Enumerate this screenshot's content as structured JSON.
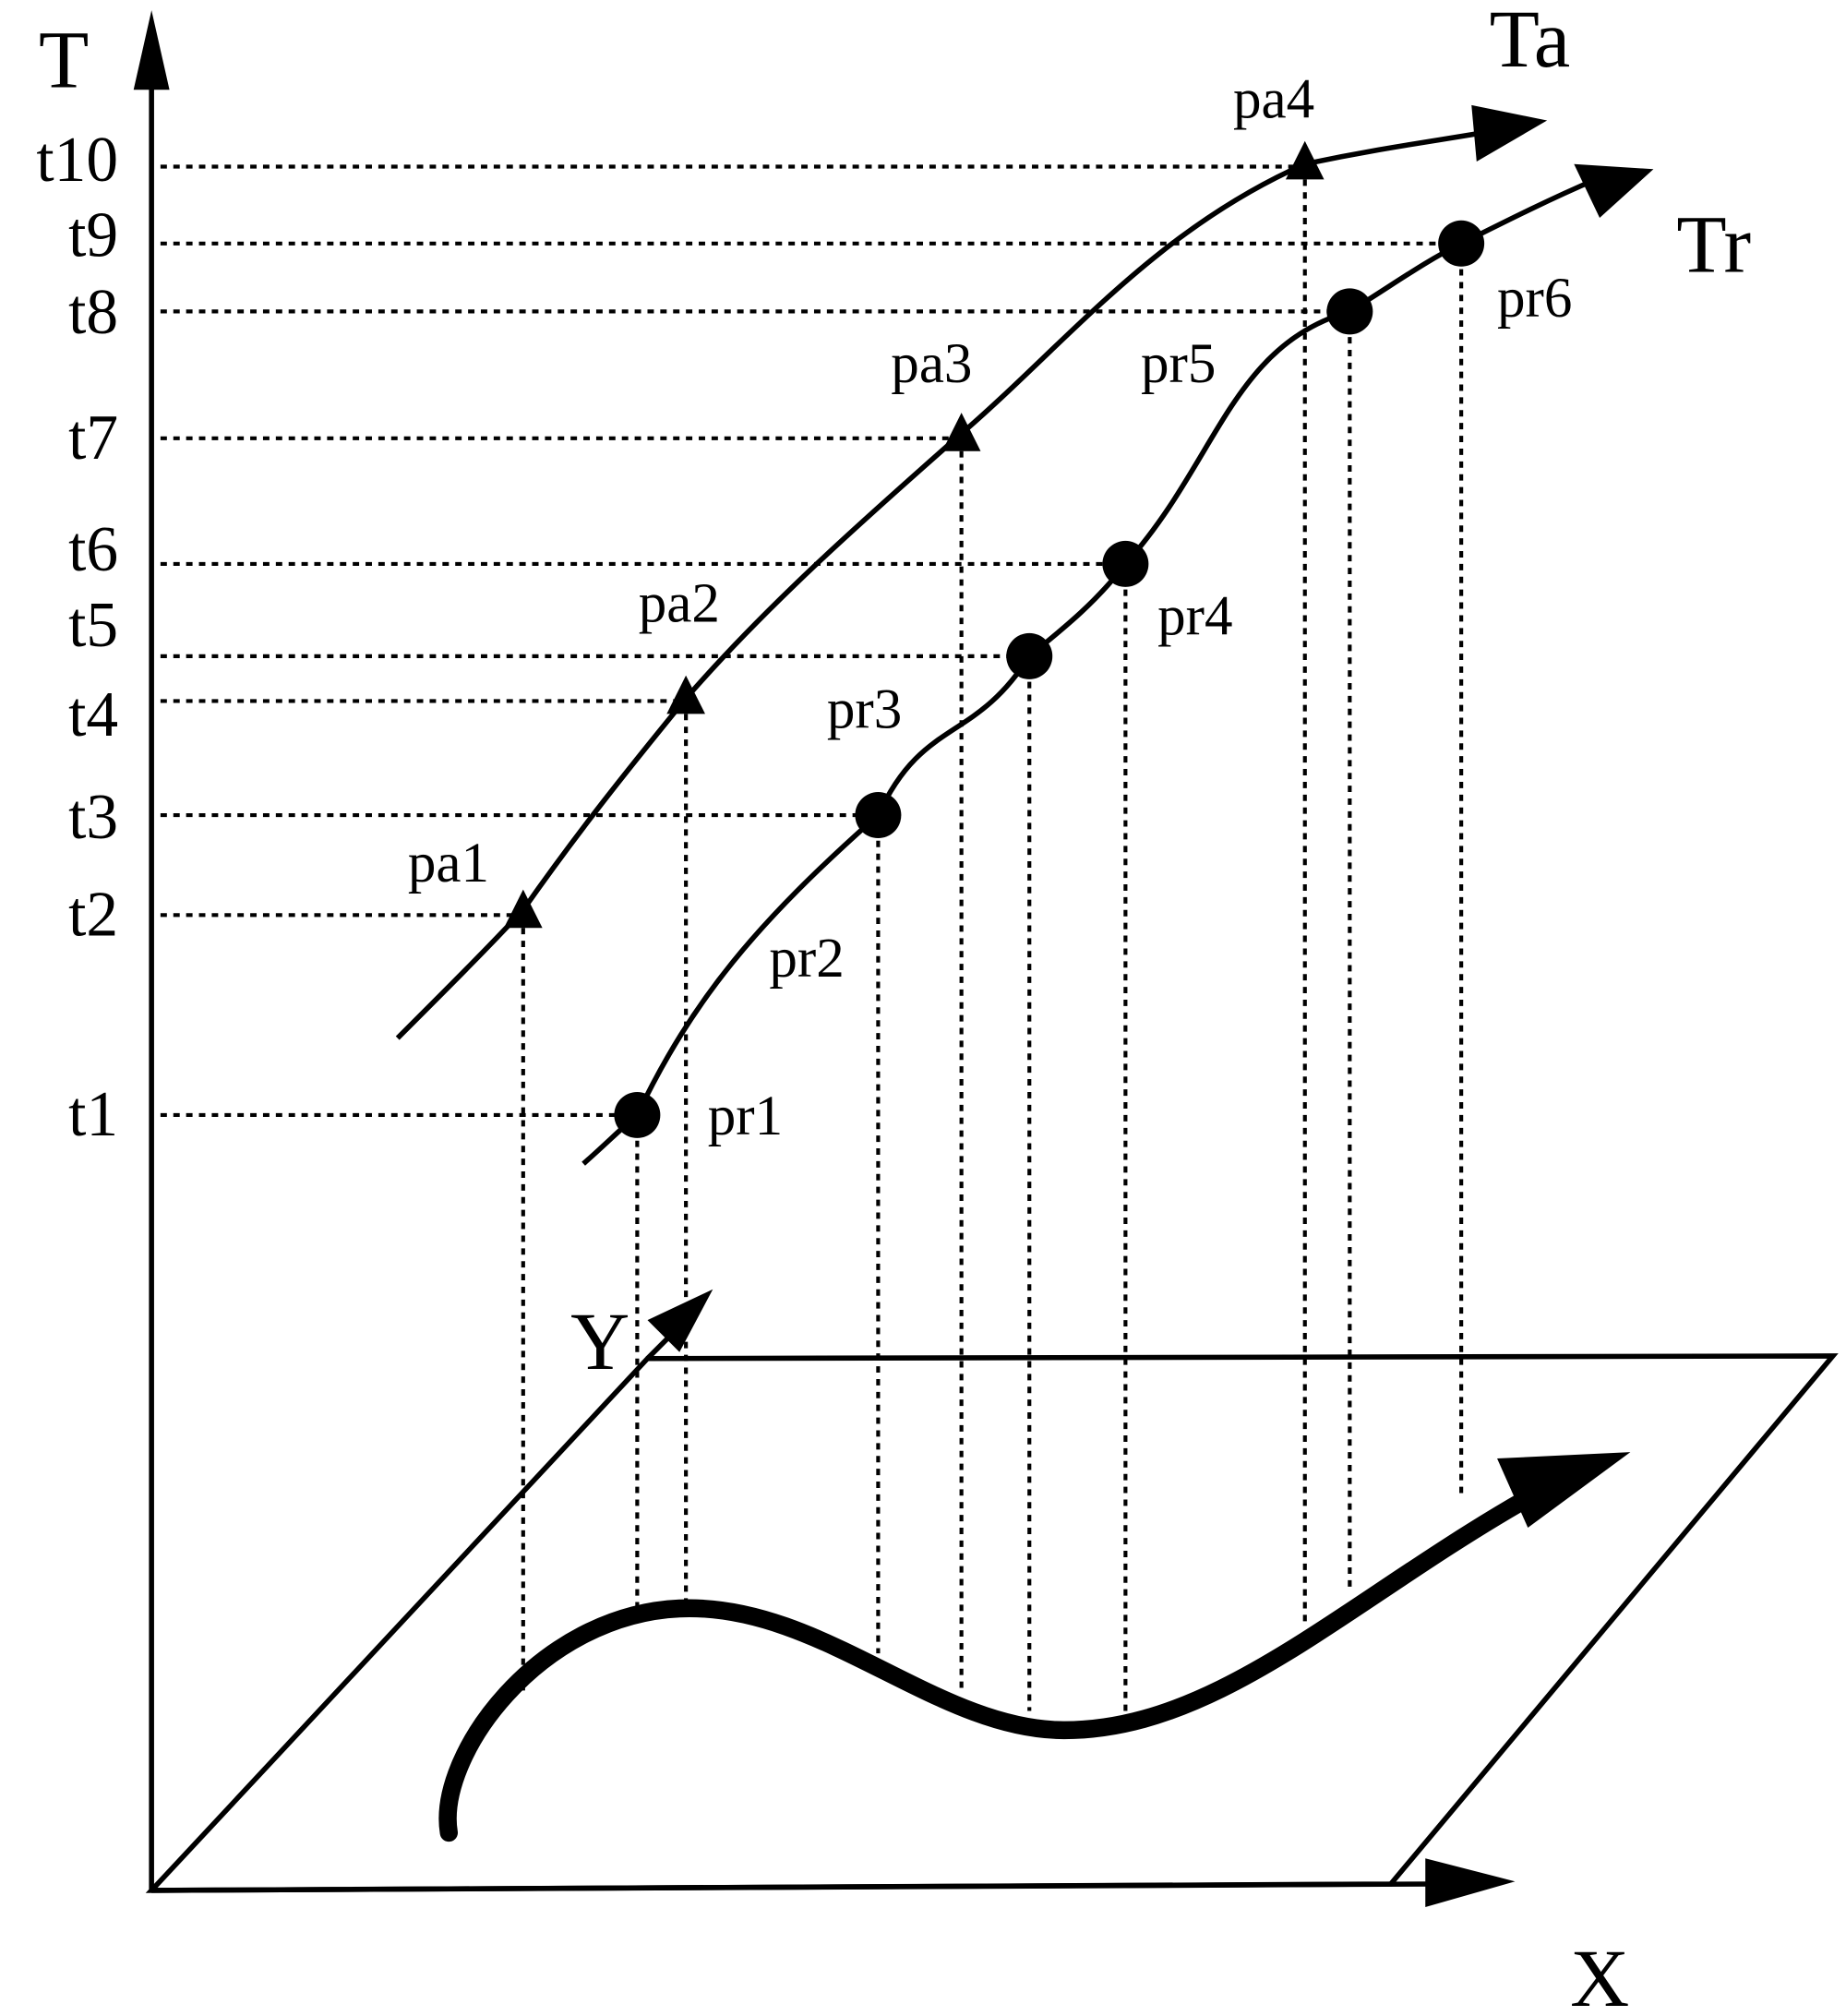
{
  "axes": {
    "t_axis": "T",
    "x_axis": "X",
    "y_axis": "Y"
  },
  "trajectories": {
    "actual": "Ta",
    "recorded": "Tr"
  },
  "time_ticks": [
    "t1",
    "t2",
    "t3",
    "t4",
    "t5",
    "t6",
    "t7",
    "t8",
    "t9",
    "t10"
  ],
  "actual_points": [
    {
      "label": "pa1",
      "time": "t2"
    },
    {
      "label": "pa2",
      "time": "t4"
    },
    {
      "label": "pa3",
      "time": "t7"
    },
    {
      "label": "pa4",
      "time": "t10"
    }
  ],
  "recorded_points": [
    {
      "label": "pr1",
      "time": "t1"
    },
    {
      "label": "pr2",
      "time": "t3"
    },
    {
      "label": "pr3",
      "time": "t5"
    },
    {
      "label": "pr4",
      "time": "t6"
    },
    {
      "label": "pr5",
      "time": "t8"
    },
    {
      "label": "pr6",
      "time": "t9"
    }
  ]
}
